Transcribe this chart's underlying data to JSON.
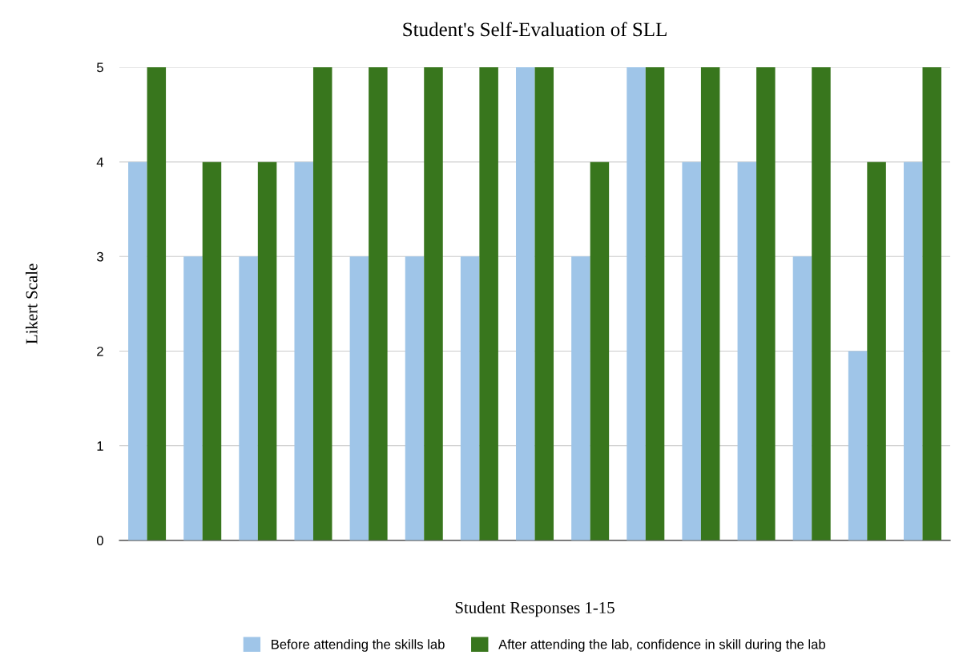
{
  "chart_data": {
    "type": "bar",
    "title": "Student's Self-Evaluation of SLL",
    "xlabel": "Student Responses 1-15",
    "ylabel": "Likert Scale",
    "categories": [
      null,
      null,
      null,
      null,
      null,
      null,
      null,
      null,
      null,
      null,
      null,
      null,
      null,
      null,
      null
    ],
    "series": [
      {
        "name": "Before attending the skills lab",
        "color": "#9fc5e8",
        "values": [
          4,
          3,
          3,
          4,
          3,
          3,
          3,
          5,
          3,
          5,
          4,
          4,
          3,
          2,
          4
        ]
      },
      {
        "name": "After attending the lab, confidence in skill during the lab",
        "color": "#38761d",
        "values": [
          5,
          4,
          4,
          5,
          5,
          5,
          5,
          5,
          4,
          5,
          5,
          5,
          5,
          4,
          5
        ]
      }
    ],
    "ylim": [
      0,
      5
    ],
    "yticks": [
      0,
      1,
      2,
      3,
      4,
      5
    ],
    "grid": "y",
    "legend": "bottom",
    "tick_labels": "y"
  }
}
